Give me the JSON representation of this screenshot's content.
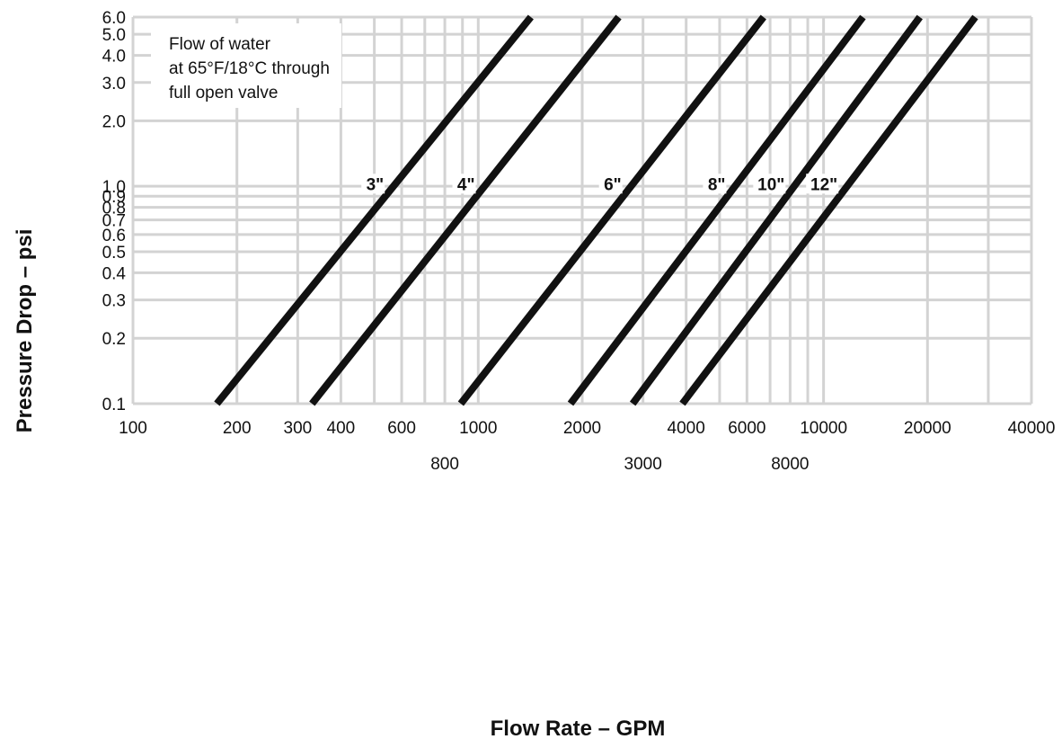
{
  "chart_data": {
    "type": "line",
    "title": "",
    "xlabel": "Flow Rate – GPM",
    "ylabel": "Pressure Drop – psi",
    "x_scale": "log",
    "y_scale": "log",
    "xlim": [
      100,
      40000
    ],
    "ylim": [
      0.1,
      6.0
    ],
    "grid": true,
    "legend": "none",
    "annotation": [
      "Flow of water",
      "at 65°F/18°C through",
      "full open valve"
    ],
    "x_tick_labels_row1": [
      "100",
      "200",
      "300",
      "400",
      "600",
      "1000",
      "2000",
      "4000",
      "6000",
      "10000",
      "20000",
      "40000"
    ],
    "x_tick_labels_row2": [
      "800",
      "3000",
      "8000"
    ],
    "y_tick_labels": [
      "6.0",
      "5.0",
      "4.0",
      "3.0",
      "2.0",
      "1.0",
      "0.9",
      "0.8",
      "0.7",
      "0.6",
      "0.5",
      "0.4",
      "0.3",
      "0.2",
      "0.1"
    ],
    "series": [
      {
        "name": "3\"",
        "x": [
          175,
          1420
        ],
        "y": [
          0.1,
          6.0
        ]
      },
      {
        "name": "4\"",
        "x": [
          330,
          2550
        ],
        "y": [
          0.1,
          6.0
        ]
      },
      {
        "name": "6\"",
        "x": [
          890,
          6700
        ],
        "y": [
          0.1,
          6.0
        ]
      },
      {
        "name": "8\"",
        "x": [
          1850,
          13000
        ],
        "y": [
          0.1,
          6.0
        ]
      },
      {
        "name": "10\"",
        "x": [
          2800,
          19000
        ],
        "y": [
          0.1,
          6.0
        ]
      },
      {
        "name": "12\"",
        "x": [
          3900,
          27500
        ],
        "y": [
          0.1,
          6.0
        ]
      }
    ]
  }
}
